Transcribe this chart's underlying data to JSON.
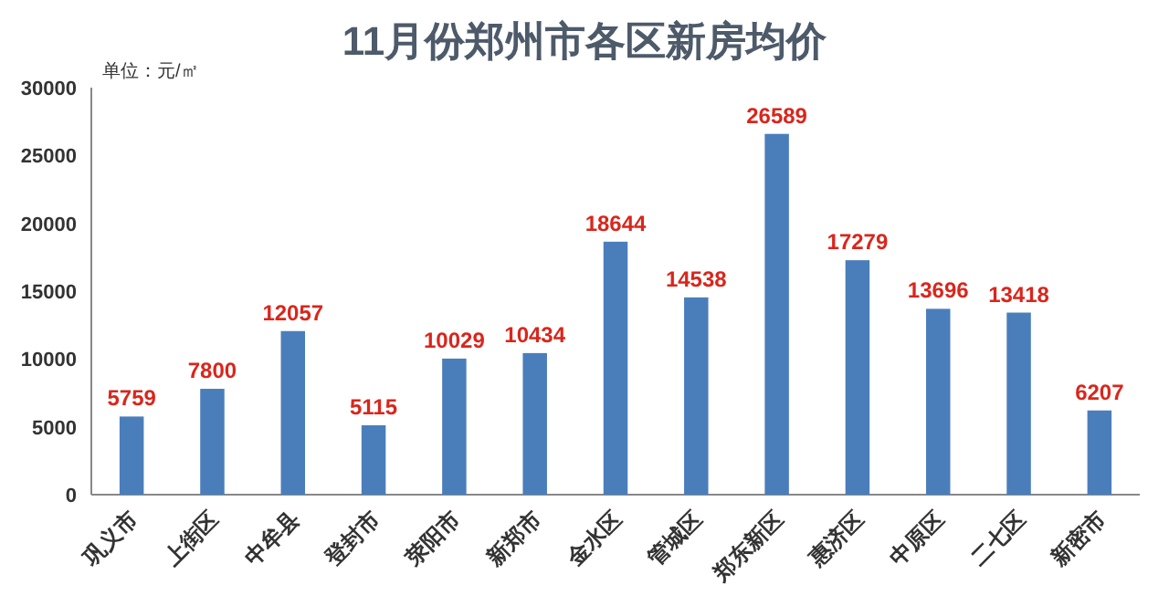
{
  "chart_data": {
    "type": "bar",
    "title": "11月份郑州市各区新房均价",
    "ylabel": "单位：元/㎡",
    "categories": [
      "巩义市",
      "上街区",
      "中牟县",
      "登封市",
      "荥阳市",
      "新郑市",
      "金水区",
      "管城区",
      "郑东新区",
      "惠济区",
      "中原区",
      "二七区",
      "新密市"
    ],
    "values": [
      5759,
      7800,
      12057,
      5115,
      10029,
      10434,
      18644,
      14538,
      26589,
      17279,
      13696,
      13418,
      6207
    ],
    "color": "#4a7ebb",
    "data_labels": true,
    "ylim": [
      0,
      30000
    ],
    "yticks": [
      0,
      5000,
      10000,
      15000,
      20000,
      25000,
      30000
    ]
  }
}
